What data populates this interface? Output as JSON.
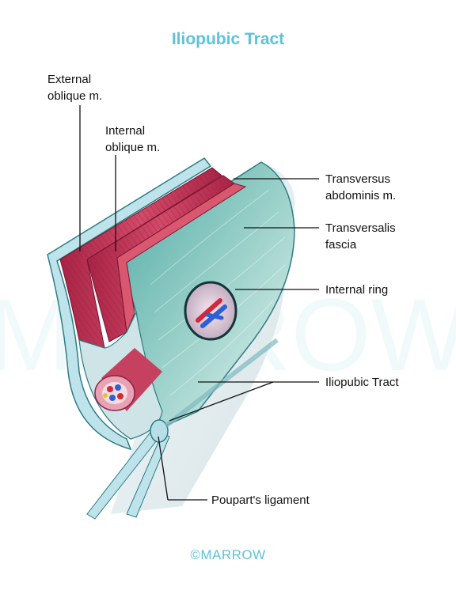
{
  "title": "Iliopubic Tract",
  "labels": {
    "external_oblique": [
      "External",
      "oblique m."
    ],
    "internal_oblique": [
      "Internal",
      "oblique m."
    ],
    "transversus_abdominis": [
      "Transversus",
      "abdominis m."
    ],
    "transversalis_fascia": [
      "Transversalis",
      "fascia"
    ],
    "internal_ring": "Internal ring",
    "iliopubic_tract": "Iliopubic Tract",
    "pouparts_ligament": "Poupart's ligament"
  },
  "footer": "©MARROW",
  "watermark": "MARROW",
  "colors": {
    "title": "#5cc3d8",
    "muscle": "#c43a5a",
    "fascia": "#5fb6b0",
    "fascia_light": "#d7ecea",
    "vessel_red": "#d2283a",
    "vessel_blue": "#2c5fd8",
    "leader_line": "#111111"
  }
}
